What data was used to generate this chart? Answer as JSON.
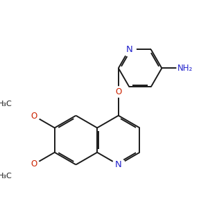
{
  "bg_color": "#ffffff",
  "bond_color": "#1a1a1a",
  "nitrogen_color": "#2222cc",
  "oxygen_color": "#cc2200",
  "lw": 1.4,
  "dbo": 0.055,
  "figsize": [
    3.0,
    3.0
  ],
  "dpi": 100,
  "xlim": [
    -2.5,
    3.5
  ],
  "ylim": [
    -2.8,
    3.2
  ]
}
